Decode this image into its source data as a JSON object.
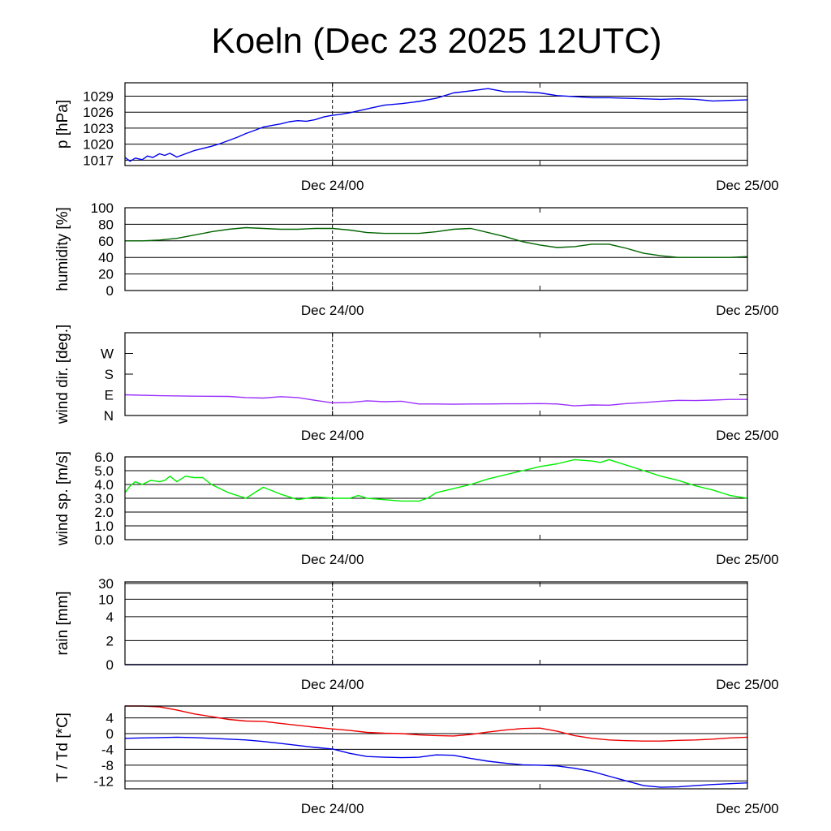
{
  "title": "Koeln (Dec 23 2025 12UTC)",
  "x_axis": {
    "tick_labels": [
      "Dec 24/00",
      "Dec 25/00"
    ],
    "range_hours": [
      0,
      36
    ],
    "label_hours": [
      12,
      36
    ],
    "minor_tick_hours": [
      12,
      24,
      36
    ]
  },
  "colors": {
    "pressure": "#0000ee",
    "humidity": "#006400",
    "wind_dir": "#9b30ff",
    "wind_speed": "#00ee00",
    "rain": "#000080",
    "temperature": "#ee0000",
    "dewpoint": "#0000ee"
  },
  "chart_data": [
    {
      "type": "line",
      "ylabel": "p [hPa]",
      "ylim": [
        1016,
        1031.5
      ],
      "y_ticks": [
        1017,
        1020,
        1023,
        1026,
        1029
      ],
      "y_tick_labels": [
        "1017",
        "1020",
        "1023",
        "1026",
        "1029"
      ],
      "grid": true,
      "series": [
        {
          "color_key": "pressure",
          "x": [
            0,
            0.3,
            0.6,
            1,
            1.3,
            1.6,
            2,
            2.3,
            2.6,
            3,
            3.5,
            4,
            4.5,
            5,
            5.5,
            6,
            6.5,
            7,
            7.5,
            8,
            8.5,
            9,
            9.5,
            10,
            10.5,
            11,
            11.5,
            12,
            12.5,
            13,
            14,
            15,
            16,
            17,
            18,
            19,
            20,
            21,
            22,
            23,
            24,
            25,
            26,
            27,
            28,
            29,
            30,
            31,
            32,
            33,
            34,
            35,
            36
          ],
          "y": [
            1017.5,
            1016.8,
            1017.4,
            1017.1,
            1017.8,
            1017.5,
            1018.2,
            1017.9,
            1018.3,
            1017.6,
            1018.2,
            1018.8,
            1019.2,
            1019.6,
            1020.1,
            1020.7,
            1021.3,
            1022.0,
            1022.6,
            1023.2,
            1023.5,
            1023.8,
            1024.2,
            1024.4,
            1024.3,
            1024.6,
            1025.1,
            1025.4,
            1025.6,
            1025.9,
            1026.6,
            1027.3,
            1027.6,
            1028.0,
            1028.6,
            1029.6,
            1030.0,
            1030.4,
            1029.8,
            1029.8,
            1029.6,
            1029.1,
            1028.9,
            1028.7,
            1028.7,
            1028.6,
            1028.5,
            1028.4,
            1028.5,
            1028.4,
            1028.1,
            1028.2,
            1028.3
          ]
        }
      ]
    },
    {
      "type": "line",
      "ylabel": "humidity [%]",
      "ylim": [
        0,
        100
      ],
      "y_ticks": [
        0,
        20,
        40,
        60,
        80,
        100
      ],
      "y_tick_labels": [
        "0",
        "20",
        "40",
        "60",
        "80",
        "100"
      ],
      "grid": true,
      "series": [
        {
          "color_key": "humidity",
          "x": [
            0,
            1,
            2,
            3,
            4,
            5,
            6,
            7,
            8,
            9,
            10,
            11,
            12,
            13,
            14,
            15,
            16,
            17,
            18,
            19,
            20,
            21,
            22,
            23,
            24,
            25,
            26,
            27,
            28,
            29,
            30,
            31,
            32,
            33,
            34,
            35,
            36
          ],
          "y": [
            60,
            60,
            61,
            63,
            67,
            71,
            74,
            76,
            75,
            74,
            74,
            75,
            75,
            73,
            70,
            69,
            69,
            69,
            71,
            74,
            75,
            70,
            65,
            59,
            55,
            52,
            53,
            56,
            56,
            51,
            45,
            42,
            40,
            40,
            40,
            40,
            41
          ]
        }
      ]
    },
    {
      "type": "line",
      "ylabel": "wind dir. [deg.]",
      "ylim": [
        0,
        360
      ],
      "y_ticks": [
        0,
        90,
        180,
        270
      ],
      "y_tick_labels": [
        "N",
        "E",
        "S",
        "W"
      ],
      "grid": false,
      "series": [
        {
          "color_key": "wind_dir",
          "x": [
            0,
            2,
            4,
            6,
            7,
            8,
            9,
            10,
            11,
            12,
            13,
            14,
            15,
            16,
            17,
            18,
            19,
            20,
            21,
            22,
            23,
            24,
            25,
            26,
            27,
            28,
            29,
            30,
            31,
            32,
            33,
            34,
            35,
            36
          ],
          "y": [
            90,
            86,
            84,
            83,
            78,
            76,
            82,
            78,
            66,
            55,
            57,
            64,
            60,
            62,
            50,
            50,
            49,
            50,
            50,
            51,
            51,
            52,
            50,
            42,
            46,
            45,
            52,
            56,
            62,
            66,
            65,
            67,
            70,
            70
          ]
        }
      ]
    },
    {
      "type": "line",
      "ylabel": "wind sp. [m/s]",
      "ylim": [
        0,
        6
      ],
      "y_ticks": [
        0,
        1,
        2,
        3,
        4,
        5,
        6
      ],
      "y_tick_labels": [
        "0.0",
        "1.0",
        "2.0",
        "3.0",
        "4.0",
        "5.0",
        "6.0"
      ],
      "grid": true,
      "series": [
        {
          "color_key": "wind_speed",
          "x": [
            0,
            0.3,
            0.6,
            1,
            1.5,
            2,
            2.3,
            2.6,
            3,
            3.5,
            4,
            4.5,
            5,
            6,
            7,
            8,
            9,
            10,
            11,
            12,
            13,
            13.5,
            14,
            15,
            16,
            17,
            17.5,
            18,
            19,
            20,
            21,
            22,
            23,
            24,
            25,
            26,
            27,
            27.5,
            28,
            29,
            30,
            31,
            32,
            33,
            34,
            35,
            36
          ],
          "y": [
            3.4,
            3.9,
            4.2,
            4.0,
            4.3,
            4.2,
            4.3,
            4.6,
            4.2,
            4.6,
            4.5,
            4.5,
            4.0,
            3.4,
            3.0,
            3.8,
            3.3,
            2.9,
            3.1,
            3.0,
            3.0,
            3.2,
            3.0,
            2.9,
            2.8,
            2.8,
            3.0,
            3.4,
            3.7,
            4.0,
            4.4,
            4.7,
            5.0,
            5.3,
            5.5,
            5.8,
            5.7,
            5.6,
            5.8,
            5.4,
            5.0,
            4.6,
            4.3,
            3.9,
            3.6,
            3.2,
            3.0
          ]
        }
      ]
    },
    {
      "type": "line",
      "ylabel": "rain [mm]",
      "ylim": [
        0,
        30
      ],
      "y_ticks": [
        0,
        2,
        4,
        10,
        30
      ],
      "y_tick_labels": [
        "0",
        "2",
        "4",
        "10",
        "30"
      ],
      "scale": "nonlinear",
      "grid": true,
      "series": [
        {
          "color_key": "rain",
          "x": [
            0,
            36
          ],
          "y": [
            0,
            0
          ]
        }
      ]
    },
    {
      "type": "line",
      "ylabel": "T / Td [*C]",
      "ylim": [
        -14,
        7
      ],
      "y_ticks": [
        -12,
        -8,
        -4,
        0,
        4
      ],
      "y_tick_labels": [
        "-12",
        "-8",
        "-4",
        "0",
        "4"
      ],
      "grid": true,
      "series": [
        {
          "color_key": "temperature",
          "x": [
            0,
            1,
            2,
            3,
            4,
            5,
            6,
            7,
            8,
            9,
            10,
            11,
            12,
            13,
            14,
            15,
            16,
            17,
            18,
            19,
            20,
            21,
            22,
            23,
            24,
            25,
            26,
            27,
            28,
            29,
            30,
            31,
            32,
            33,
            34,
            35,
            36
          ],
          "y": [
            7,
            7,
            6.8,
            6,
            5,
            4.3,
            3.6,
            3.2,
            3.1,
            2.6,
            2.1,
            1.6,
            1.2,
            0.8,
            0.3,
            0.1,
            0,
            -0.3,
            -0.5,
            -0.6,
            -0.2,
            0.4,
            0.9,
            1.3,
            1.4,
            0.6,
            -0.5,
            -1.2,
            -1.6,
            -1.8,
            -1.9,
            -1.9,
            -1.7,
            -1.6,
            -1.4,
            -1.1,
            -0.9
          ]
        },
        {
          "color_key": "dewpoint",
          "x": [
            0,
            1,
            2,
            3,
            4,
            5,
            6,
            7,
            8,
            9,
            10,
            11,
            12,
            13,
            14,
            15,
            16,
            17,
            18,
            19,
            20,
            21,
            22,
            23,
            24,
            25,
            26,
            27,
            28,
            29,
            30,
            31,
            32,
            33,
            34,
            35,
            36
          ],
          "y": [
            -1.2,
            -1.1,
            -1,
            -0.9,
            -1,
            -1.2,
            -1.4,
            -1.6,
            -2,
            -2.5,
            -3,
            -3.5,
            -3.9,
            -5,
            -5.8,
            -6,
            -6.1,
            -6,
            -5.4,
            -5.5,
            -6.3,
            -7,
            -7.5,
            -7.9,
            -8.0,
            -8.2,
            -8.8,
            -9.6,
            -10.8,
            -12,
            -13.2,
            -13.6,
            -13.5,
            -13.2,
            -12.9,
            -12.7,
            -12.5
          ]
        }
      ]
    }
  ]
}
